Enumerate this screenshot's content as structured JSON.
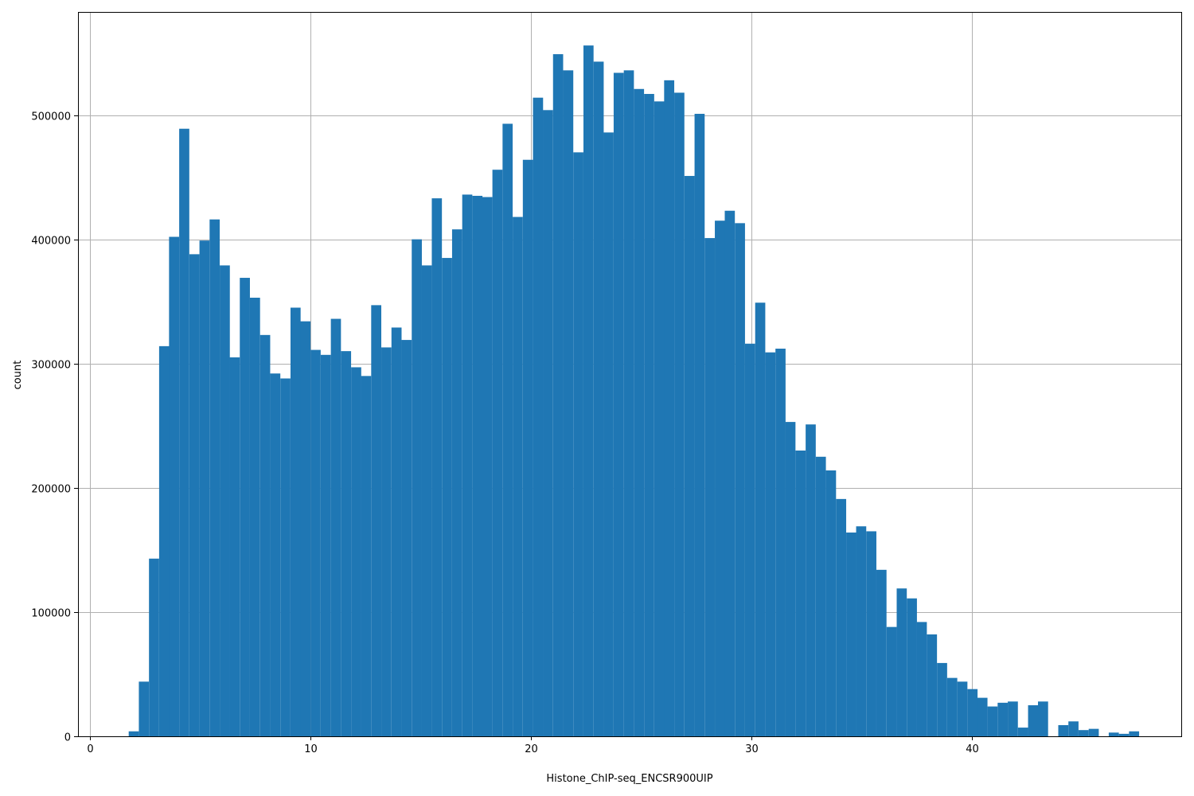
{
  "chart_data": {
    "type": "bar",
    "histogram": true,
    "title": "",
    "xlabel": "Histone_ChIP-seq_ENCSR900UIP",
    "ylabel": "count",
    "xlim": [
      -0.55,
      49.5
    ],
    "ylim": [
      0,
      583000
    ],
    "grid": true,
    "bar_color": "#1f77b4",
    "bin_width": 0.4585,
    "x_ticks": [
      0,
      10,
      20,
      30,
      40
    ],
    "x_tick_labels": [
      "0",
      "10",
      "20",
      "30",
      "40"
    ],
    "y_ticks": [
      0,
      100000,
      200000,
      300000,
      400000,
      500000
    ],
    "y_tick_labels": [
      "0",
      "100000",
      "200000",
      "300000",
      "400000",
      "500000"
    ],
    "bin_starts": [
      1.75,
      2.21,
      2.67,
      3.13,
      3.58,
      4.04,
      4.5,
      4.96,
      5.42,
      5.88,
      6.33,
      6.79,
      7.25,
      7.71,
      8.17,
      8.63,
      9.09,
      9.54,
      10.0,
      10.46,
      10.92,
      11.38,
      11.84,
      12.29,
      12.75,
      13.21,
      13.67,
      14.13,
      14.59,
      15.04,
      15.5,
      15.96,
      16.42,
      16.88,
      17.34,
      17.79,
      18.25,
      18.71,
      19.17,
      19.63,
      20.09,
      20.54,
      21.0,
      21.46,
      21.92,
      22.38,
      22.84,
      23.29,
      23.75,
      24.21,
      24.67,
      25.13,
      25.59,
      26.04,
      26.5,
      26.96,
      27.42,
      27.88,
      28.34,
      28.79,
      29.25,
      29.71,
      30.17,
      30.63,
      31.09,
      31.54,
      32.0,
      32.46,
      32.92,
      33.38,
      33.84,
      34.3,
      34.75,
      35.21,
      35.67,
      36.13,
      36.59,
      37.05,
      37.5,
      37.96,
      38.42,
      38.88,
      39.34,
      39.8,
      40.25,
      40.71,
      41.17,
      41.63,
      42.09,
      42.55,
      43.0,
      43.46,
      43.92,
      44.38,
      44.84,
      45.3,
      45.75,
      46.21,
      46.67,
      47.13
    ],
    "values": [
      4000,
      44000,
      143000,
      314000,
      402000,
      489000,
      388000,
      399000,
      416000,
      379000,
      305000,
      369000,
      353000,
      323000,
      292000,
      288000,
      345000,
      334000,
      311000,
      307000,
      336000,
      310000,
      297000,
      290000,
      347000,
      313000,
      329000,
      319000,
      400000,
      379000,
      433000,
      385000,
      408000,
      436000,
      435000,
      434000,
      456000,
      493000,
      418000,
      464000,
      514000,
      504000,
      549000,
      536000,
      470000,
      556000,
      543000,
      486000,
      534000,
      536000,
      521000,
      517000,
      511000,
      528000,
      518000,
      451000,
      501000,
      401000,
      415000,
      423000,
      413000,
      316000,
      349000,
      309000,
      312000,
      253000,
      230000,
      251000,
      225000,
      214000,
      191000,
      164000,
      169000,
      165000,
      134000,
      88000,
      119000,
      111000,
      92000,
      82000,
      59000,
      47000,
      44000,
      38000,
      31000,
      24000,
      27000,
      28000,
      7000,
      25000,
      28000,
      0,
      9000,
      12000,
      5000,
      6000,
      0,
      3000,
      2000,
      4000
    ]
  }
}
